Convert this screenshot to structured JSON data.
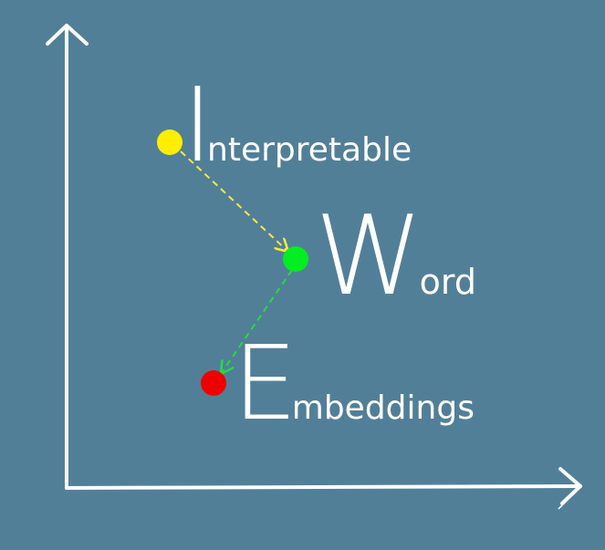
{
  "background": "#527f98",
  "colors": {
    "axis": "#ffffff",
    "text": "#ffffff",
    "arrow_yellow": "#f5ea3b",
    "arrow_green": "#22dd44"
  },
  "points": [
    {
      "id": "interpretable",
      "color": "#ffee00"
    },
    {
      "id": "word",
      "color": "#00ee22"
    },
    {
      "id": "embeddings",
      "color": "#ee0000"
    }
  ],
  "title_words": {
    "interpretable": {
      "initial": "I",
      "rest": "nterpretable"
    },
    "word": {
      "initial": "W",
      "rest": "ord"
    },
    "embeddings": {
      "initial": "E",
      "rest": "mbeddings"
    }
  }
}
